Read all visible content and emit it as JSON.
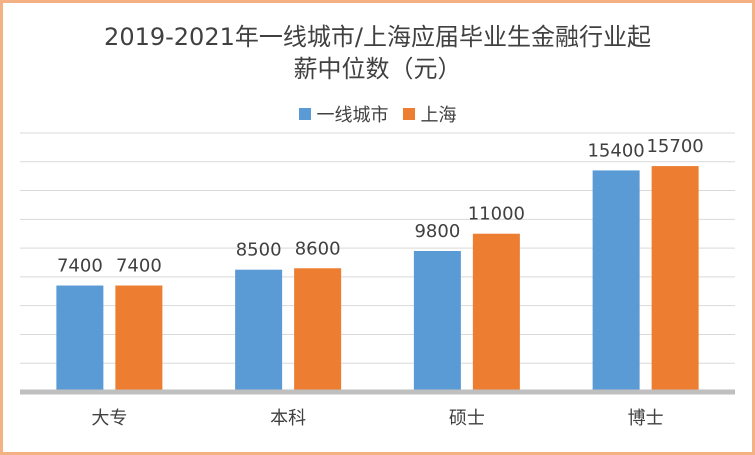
{
  "chart_data": {
    "type": "bar",
    "title_line1": "2019-2021年一线城市/上海应届毕业生金融行业起",
    "title_line2": "薪中位数（元）",
    "categories": [
      "大专",
      "本科",
      "硕士",
      "博士"
    ],
    "series": [
      {
        "name": "一线城市",
        "color": "#5b9bd5",
        "values": [
          7400,
          8500,
          9800,
          15400
        ]
      },
      {
        "name": "上海",
        "color": "#ed7d31",
        "values": [
          7400,
          8600,
          11000,
          15700
        ]
      }
    ],
    "ylim": [
      0,
      18000
    ],
    "grid": true,
    "legend_position": "top"
  }
}
